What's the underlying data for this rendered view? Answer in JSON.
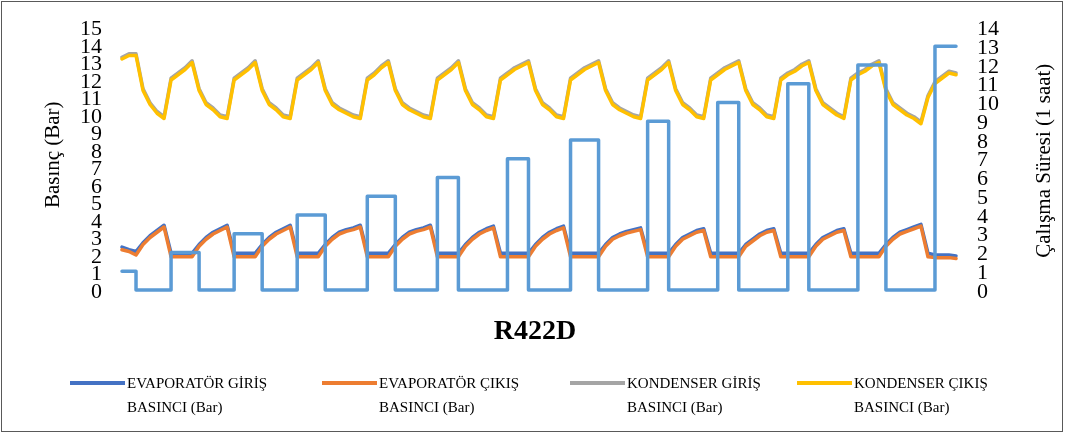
{
  "chart_data": {
    "type": "line",
    "title": "R422D",
    "ylabel": "Basınç (Bar)",
    "y2label": "Çalışma Süresi (1 saat)",
    "categories": [
      null,
      null,
      null,
      null,
      null,
      null,
      null,
      null,
      null,
      null,
      null,
      null,
      null,
      null,
      null,
      null,
      null,
      null,
      null,
      null,
      null,
      null,
      null,
      null,
      null,
      null,
      null,
      null,
      null,
      null,
      null,
      null,
      null,
      null,
      null,
      null,
      null,
      null,
      null,
      null,
      null,
      null,
      null,
      null,
      null,
      null,
      null,
      null,
      null,
      null,
      null,
      null,
      null,
      null,
      null,
      null,
      null,
      null,
      null,
      null,
      null,
      null,
      null,
      null,
      null,
      null,
      null,
      null,
      null,
      null,
      null,
      null,
      null,
      null,
      null,
      null,
      null,
      null,
      null,
      null,
      null,
      null,
      null,
      null,
      null,
      null,
      null,
      null,
      null,
      null,
      null,
      null,
      null,
      null,
      null,
      null,
      null,
      null,
      null,
      null,
      null,
      null,
      null,
      null,
      null,
      null,
      null,
      null,
      null,
      null,
      null,
      null,
      null,
      null,
      null,
      null,
      null,
      null,
      null,
      null
    ],
    "ylim": [
      0,
      15
    ],
    "yticks": [
      0,
      1,
      2,
      3,
      4,
      5,
      6,
      7,
      8,
      9,
      10,
      11,
      12,
      13,
      14,
      15
    ],
    "y2lim": [
      0,
      14
    ],
    "y2ticks": [
      0,
      1,
      2,
      3,
      4,
      5,
      6,
      7,
      8,
      9,
      10,
      11,
      12,
      13,
      14
    ],
    "legend": "bottom",
    "marker": "none",
    "line_style": "solid",
    "series": [
      {
        "name": "EVAPORATÖR GİRİŞ BASINCI (Bar)",
        "color": "#4472c4",
        "values": [
          2.45,
          2.3,
          2.2,
          2.7,
          3.1,
          3.4,
          3.7,
          2.1,
          2.1,
          2.1,
          2.1,
          2.6,
          3.0,
          3.3,
          3.5,
          3.7,
          2.1,
          2.1,
          2.1,
          2.1,
          2.6,
          3.0,
          3.3,
          3.5,
          3.7,
          2.1,
          2.1,
          2.1,
          2.1,
          2.6,
          3.0,
          3.3,
          3.45,
          3.55,
          3.7,
          2.1,
          2.1,
          2.1,
          2.1,
          2.6,
          3.0,
          3.3,
          3.45,
          3.55,
          3.7,
          2.1,
          2.1,
          2.1,
          2.1,
          2.6,
          3.0,
          3.3,
          3.5,
          3.65,
          2.1,
          2.1,
          2.1,
          2.1,
          2.1,
          2.6,
          3.0,
          3.3,
          3.5,
          3.65,
          2.1,
          2.1,
          2.1,
          2.1,
          2.1,
          2.6,
          3.0,
          3.2,
          3.35,
          3.45,
          3.55,
          2.1,
          2.1,
          2.1,
          2.1,
          2.6,
          3.0,
          3.2,
          3.4,
          3.5,
          2.1,
          2.1,
          2.1,
          2.1,
          2.1,
          2.6,
          2.9,
          3.2,
          3.4,
          3.5,
          2.1,
          2.1,
          2.1,
          2.1,
          2.1,
          2.6,
          3.0,
          3.2,
          3.4,
          3.5,
          2.1,
          2.1,
          2.1,
          2.1,
          2.1,
          2.6,
          3.0,
          3.3,
          3.45,
          3.6,
          3.75,
          2.1,
          2.0,
          2.0,
          2.0,
          1.95
        ]
      },
      {
        "name": "EVAPORATÖR ÇIKIŞ BASINCI (Bar)",
        "color": "#ed7d31",
        "values": [
          2.3,
          2.2,
          2.0,
          2.6,
          3.0,
          3.3,
          3.6,
          1.9,
          1.9,
          1.9,
          1.9,
          2.5,
          2.9,
          3.2,
          3.4,
          3.6,
          1.9,
          1.9,
          1.9,
          1.9,
          2.5,
          2.9,
          3.2,
          3.4,
          3.6,
          1.9,
          1.9,
          1.9,
          1.9,
          2.5,
          2.9,
          3.2,
          3.35,
          3.45,
          3.6,
          1.9,
          1.9,
          1.9,
          1.9,
          2.5,
          2.9,
          3.2,
          3.35,
          3.45,
          3.6,
          1.9,
          1.9,
          1.9,
          1.9,
          2.5,
          2.9,
          3.2,
          3.4,
          3.55,
          1.9,
          1.9,
          1.9,
          1.9,
          1.9,
          2.5,
          2.9,
          3.2,
          3.4,
          3.55,
          1.9,
          1.9,
          1.9,
          1.9,
          1.9,
          2.5,
          2.9,
          3.1,
          3.25,
          3.35,
          3.45,
          1.9,
          1.9,
          1.9,
          1.9,
          2.5,
          2.9,
          3.1,
          3.3,
          3.4,
          1.9,
          1.9,
          1.9,
          1.9,
          1.9,
          2.5,
          2.8,
          3.1,
          3.3,
          3.4,
          1.9,
          1.9,
          1.9,
          1.9,
          1.9,
          2.5,
          2.9,
          3.1,
          3.3,
          3.4,
          1.9,
          1.9,
          1.9,
          1.9,
          1.9,
          2.5,
          2.9,
          3.2,
          3.35,
          3.5,
          3.65,
          1.9,
          1.85,
          1.85,
          1.85,
          1.8
        ]
      },
      {
        "name": "KONDENSER GİRİŞ BASINCI (Bar)",
        "color": "#a5a5a5",
        "values": [
          13.3,
          13.5,
          13.5,
          11.5,
          10.7,
          10.2,
          9.9,
          12.1,
          12.4,
          12.7,
          13.1,
          11.5,
          10.7,
          10.4,
          10.0,
          9.9,
          12.1,
          12.4,
          12.7,
          13.1,
          11.5,
          10.7,
          10.4,
          10.0,
          9.9,
          12.1,
          12.4,
          12.7,
          13.1,
          11.5,
          10.7,
          10.4,
          10.2,
          10.0,
          9.9,
          12.1,
          12.4,
          12.8,
          13.1,
          11.5,
          10.7,
          10.4,
          10.2,
          10.0,
          9.9,
          12.1,
          12.4,
          12.7,
          13.1,
          11.5,
          10.7,
          10.4,
          10.0,
          9.9,
          12.1,
          12.4,
          12.7,
          12.9,
          13.1,
          11.5,
          10.7,
          10.4,
          10.0,
          9.9,
          12.1,
          12.4,
          12.7,
          12.9,
          13.1,
          11.5,
          10.7,
          10.4,
          10.2,
          10.0,
          9.9,
          12.1,
          12.4,
          12.7,
          13.1,
          11.5,
          10.7,
          10.4,
          10.0,
          9.9,
          12.1,
          12.4,
          12.7,
          12.9,
          13.1,
          11.5,
          10.7,
          10.4,
          10.0,
          9.9,
          12.1,
          12.4,
          12.6,
          12.9,
          13.1,
          11.5,
          10.7,
          10.4,
          10.1,
          9.9,
          12.1,
          12.4,
          12.6,
          12.9,
          13.1,
          11.5,
          10.7,
          10.4,
          10.1,
          9.9,
          9.6,
          11.1,
          11.9,
          12.2,
          12.5,
          12.4
        ]
      },
      {
        "name": "KONDENSER ÇIKIŞ BASINCI (Bar)",
        "color": "#ffc000",
        "values": [
          13.2,
          13.4,
          13.4,
          11.4,
          10.6,
          10.1,
          9.8,
          12.0,
          12.3,
          12.6,
          13.0,
          11.4,
          10.6,
          10.3,
          9.9,
          9.8,
          12.0,
          12.3,
          12.6,
          13.0,
          11.4,
          10.6,
          10.3,
          9.9,
          9.8,
          12.0,
          12.3,
          12.6,
          13.0,
          11.4,
          10.6,
          10.3,
          10.1,
          9.9,
          9.8,
          12.0,
          12.3,
          12.7,
          13.0,
          11.4,
          10.6,
          10.3,
          10.1,
          9.9,
          9.8,
          12.0,
          12.3,
          12.6,
          13.0,
          11.4,
          10.6,
          10.3,
          9.9,
          9.8,
          12.0,
          12.3,
          12.6,
          12.8,
          13.0,
          11.4,
          10.6,
          10.3,
          9.9,
          9.8,
          12.0,
          12.3,
          12.6,
          12.8,
          13.0,
          11.4,
          10.6,
          10.3,
          10.1,
          9.9,
          9.8,
          12.0,
          12.3,
          12.6,
          13.0,
          11.4,
          10.6,
          10.3,
          9.9,
          9.8,
          12.0,
          12.3,
          12.6,
          12.8,
          13.0,
          11.4,
          10.6,
          10.3,
          9.9,
          9.8,
          12.0,
          12.3,
          12.5,
          12.8,
          13.0,
          11.4,
          10.6,
          10.3,
          10.0,
          9.8,
          12.0,
          12.3,
          12.5,
          12.8,
          13.0,
          11.4,
          10.6,
          10.3,
          10.0,
          9.8,
          9.5,
          11.0,
          11.8,
          12.1,
          12.4,
          12.3
        ]
      },
      {
        "type": "step",
        "axis": "y2",
        "color": "#5b9bd5",
        "values": [
          1,
          1,
          0,
          0,
          0,
          0,
          0,
          2,
          2,
          2,
          2,
          0,
          0,
          0,
          0,
          0,
          3,
          3,
          3,
          3,
          0,
          0,
          0,
          0,
          0,
          4,
          4,
          4,
          4,
          0,
          0,
          0,
          0,
          0,
          0,
          5,
          5,
          5,
          5,
          0,
          0,
          0,
          0,
          0,
          0,
          6,
          6,
          6,
          0,
          0,
          0,
          0,
          0,
          0,
          0,
          7,
          7,
          7,
          0,
          0,
          0,
          0,
          0,
          0,
          8,
          8,
          8,
          8,
          0,
          0,
          0,
          0,
          0,
          0,
          0,
          9,
          9,
          9,
          0,
          0,
          0,
          0,
          0,
          0,
          0,
          10,
          10,
          10,
          0,
          0,
          0,
          0,
          0,
          0,
          0,
          11,
          11,
          11,
          0,
          0,
          0,
          0,
          0,
          0,
          0,
          12,
          12,
          12,
          12,
          0,
          0,
          0,
          0,
          0,
          0,
          0,
          13,
          13,
          13,
          13
        ]
      }
    ]
  }
}
